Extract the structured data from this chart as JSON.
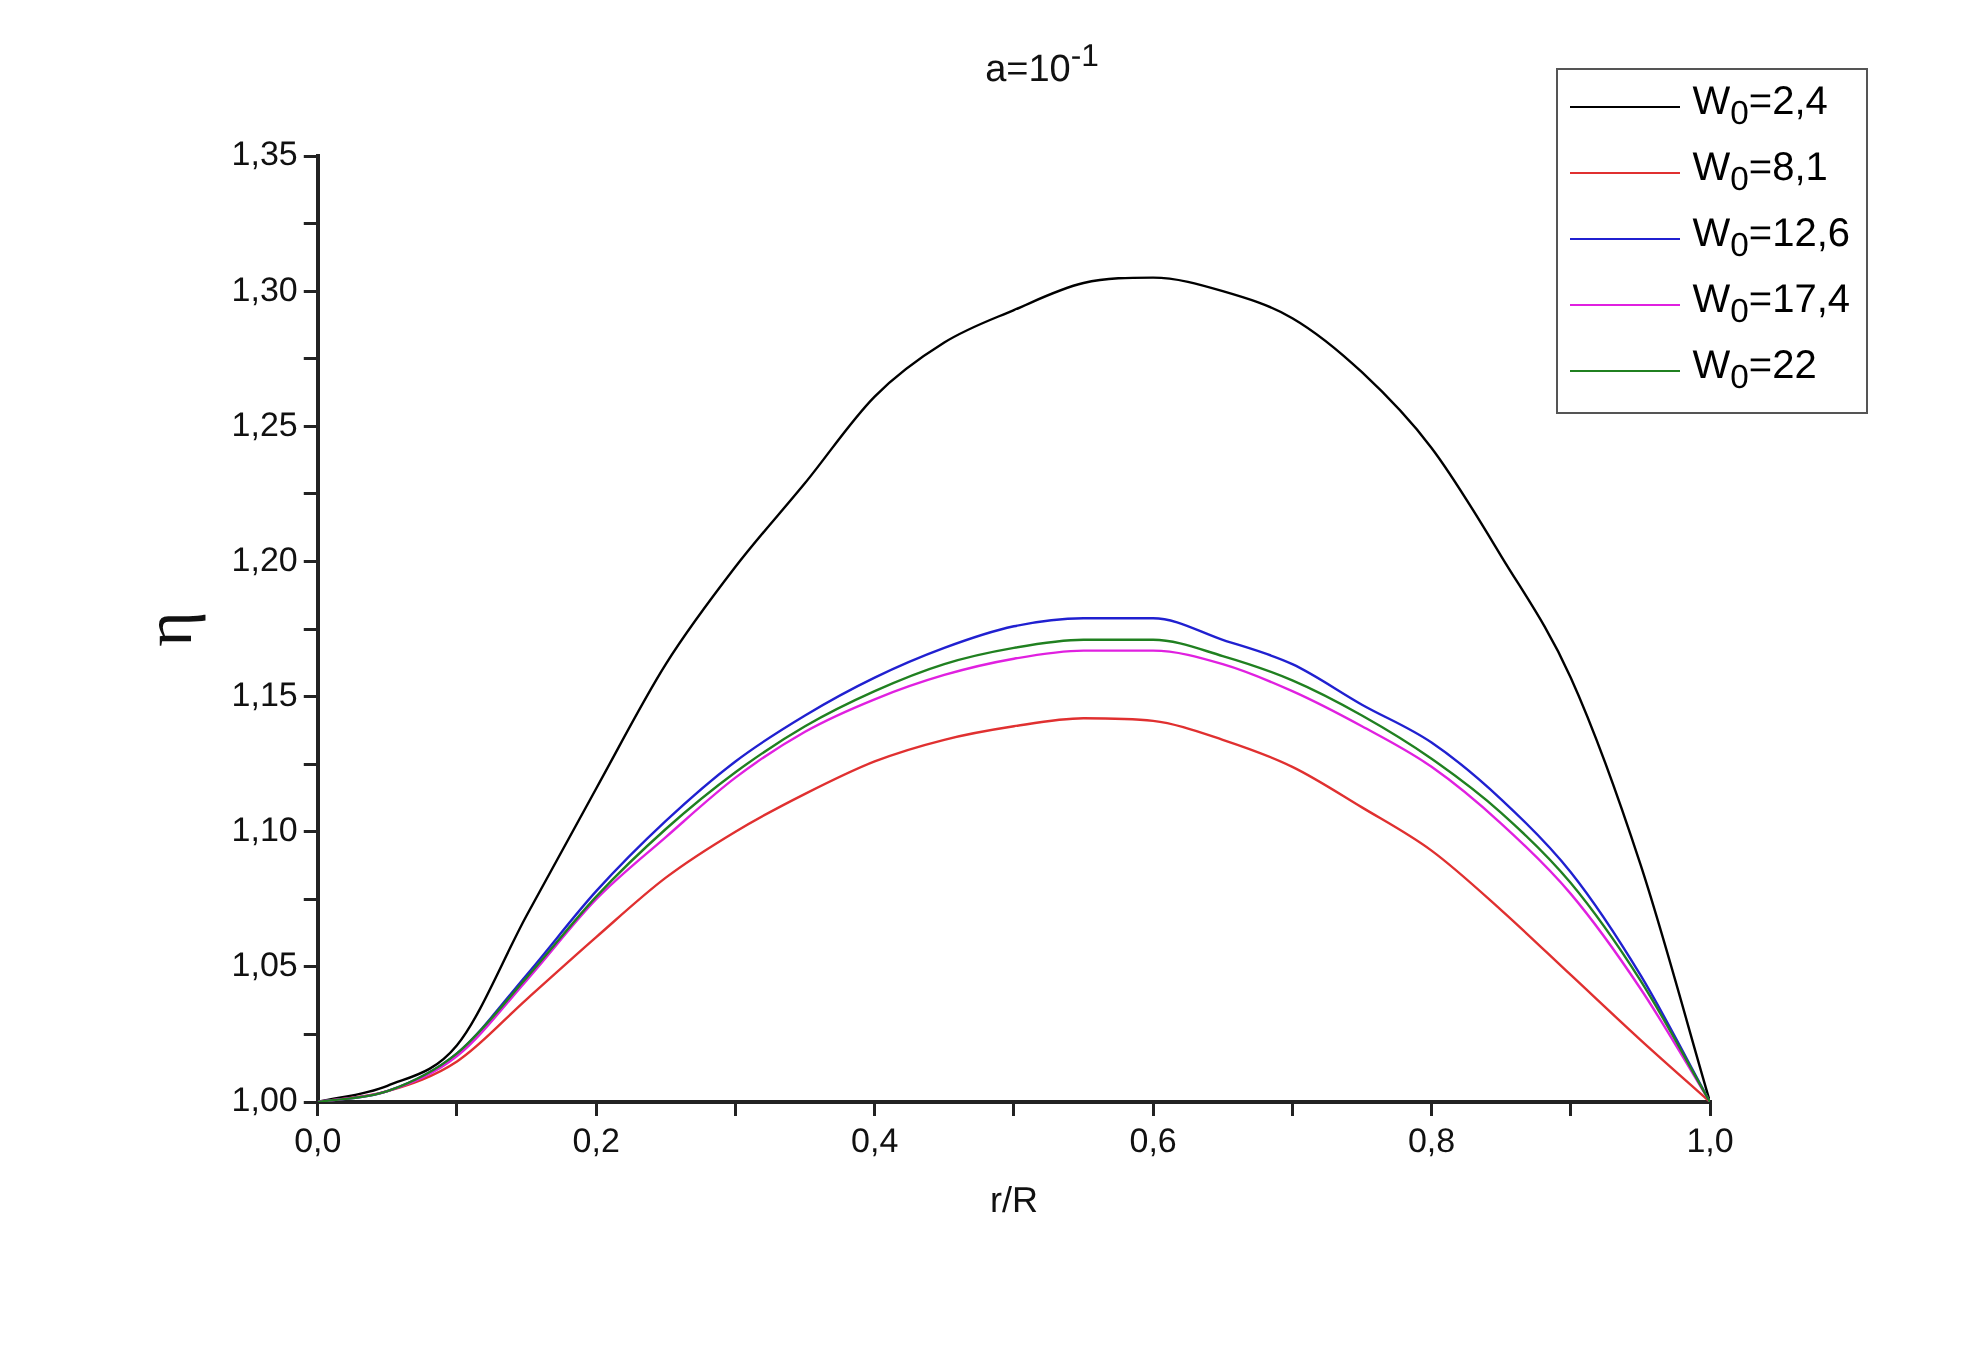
{
  "chart_data": {
    "type": "line",
    "title": "a=10$^{-1}$",
    "xlabel": "r/R",
    "ylabel": "η",
    "x": [
      0,
      0.05,
      0.1,
      0.15,
      0.2,
      0.25,
      0.3,
      0.35,
      0.4,
      0.45,
      0.5,
      0.55,
      0.6,
      0.65,
      0.7,
      0.75,
      0.8,
      0.85,
      0.9,
      0.95,
      1.0
    ],
    "series": [
      {
        "name": "W$_{0}$=2,4",
        "color": "#000000",
        "values": [
          1.0,
          1.006,
          1.021,
          1.069,
          1.116,
          1.162,
          1.198,
          1.229,
          1.261,
          1.281,
          1.293,
          1.303,
          1.305,
          1.3,
          1.29,
          1.27,
          1.242,
          1.202,
          1.157,
          1.088,
          1.0
        ]
      },
      {
        "name": "W$_{0}$=8,1",
        "color": "#e03030",
        "values": [
          1.0,
          1.004,
          1.015,
          1.038,
          1.061,
          1.083,
          1.1,
          1.114,
          1.126,
          1.134,
          1.139,
          1.142,
          1.141,
          1.134,
          1.124,
          1.109,
          1.093,
          1.071,
          1.047,
          1.023,
          1.0
        ]
      },
      {
        "name": "W$_{0}$=12,6",
        "color": "#2020d0",
        "values": [
          1.0,
          1.004,
          1.018,
          1.047,
          1.078,
          1.104,
          1.126,
          1.143,
          1.157,
          1.168,
          1.176,
          1.179,
          1.179,
          1.171,
          1.162,
          1.147,
          1.133,
          1.112,
          1.085,
          1.047,
          1.0
        ]
      },
      {
        "name": "W$_{0}$=17,4",
        "color": "#e020e0",
        "values": [
          1.0,
          1.004,
          1.017,
          1.045,
          1.075,
          1.098,
          1.12,
          1.137,
          1.149,
          1.158,
          1.164,
          1.167,
          1.167,
          1.162,
          1.152,
          1.139,
          1.124,
          1.103,
          1.077,
          1.042,
          1.0
        ]
      },
      {
        "name": "W$_{0}$=22",
        "color": "#208020",
        "values": [
          1.0,
          1.004,
          1.018,
          1.046,
          1.076,
          1.101,
          1.122,
          1.139,
          1.152,
          1.162,
          1.168,
          1.171,
          1.171,
          1.165,
          1.156,
          1.143,
          1.127,
          1.107,
          1.081,
          1.045,
          1.0
        ]
      }
    ],
    "xlim": [
      0,
      1.0
    ],
    "xticks": [
      {
        "value": 0,
        "label": "0,0"
      },
      {
        "value": 0.1,
        "label": null
      },
      {
        "value": 0.2,
        "label": "0,2"
      },
      {
        "value": 0.3,
        "label": null
      },
      {
        "value": 0.4,
        "label": "0,4"
      },
      {
        "value": 0.5,
        "label": null
      },
      {
        "value": 0.6,
        "label": "0,6"
      },
      {
        "value": 0.7,
        "label": null
      },
      {
        "value": 0.8,
        "label": "0,8"
      },
      {
        "value": 0.9,
        "label": null
      },
      {
        "value": 1.0,
        "label": "1,0"
      }
    ],
    "ylim": [
      1.0,
      1.35
    ],
    "yticks": [
      {
        "value": 1.0,
        "label": "1,00"
      },
      {
        "value": 1.025,
        "label": null
      },
      {
        "value": 1.05,
        "label": "1,05"
      },
      {
        "value": 1.075,
        "label": null
      },
      {
        "value": 1.1,
        "label": "1,10"
      },
      {
        "value": 1.125,
        "label": null
      },
      {
        "value": 1.15,
        "label": "1,15"
      },
      {
        "value": 1.175,
        "label": null
      },
      {
        "value": 1.2,
        "label": "1,20"
      },
      {
        "value": 1.225,
        "label": null
      },
      {
        "value": 1.25,
        "label": "1,25"
      },
      {
        "value": 1.275,
        "label": null
      },
      {
        "value": 1.3,
        "label": "1,30"
      },
      {
        "value": 1.325,
        "label": null
      },
      {
        "value": 1.35,
        "label": "1,35"
      }
    ],
    "grid": false,
    "legend": "top right",
    "marker": "none",
    "line_style": "solid"
  }
}
